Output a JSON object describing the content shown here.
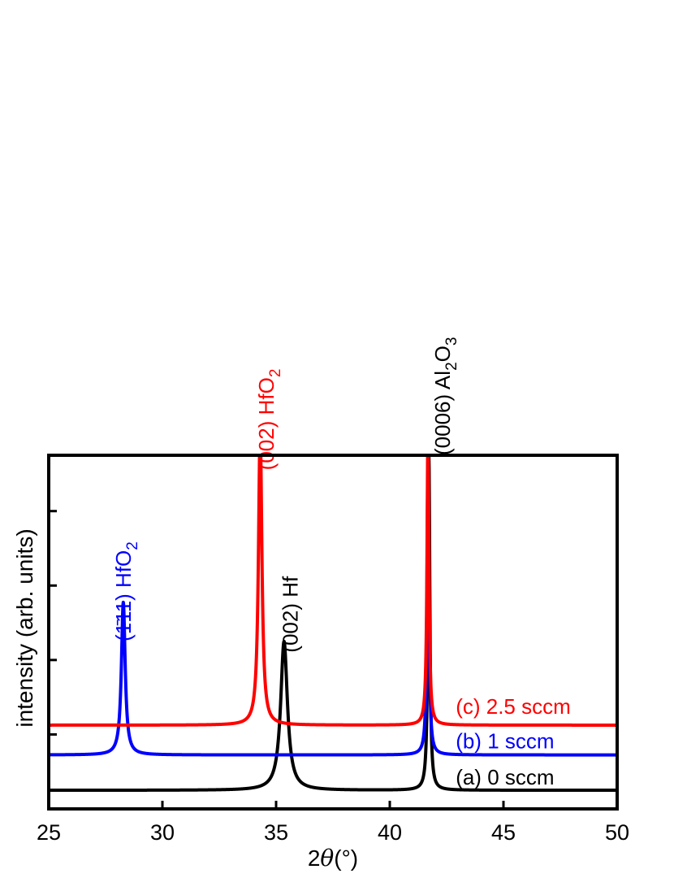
{
  "chart_data": {
    "type": "line",
    "xlabel_prefix": "2",
    "xlabel_symbol": "θ",
    "xlabel_suffix": "(°)",
    "ylabel": "intensity (arb. units)",
    "xlim": [
      25,
      50
    ],
    "xticks": [
      25,
      30,
      35,
      40,
      45,
      50
    ],
    "ylim": [
      0,
      19
    ],
    "yticks_minor_positions": [
      4,
      8,
      12,
      16
    ],
    "y_tick_labels_shown": false,
    "grid": false,
    "series": [
      {
        "name": "(a) 0 sccm",
        "color": "#000000",
        "baseline": 1.0,
        "peaks": [
          {
            "center": 35.35,
            "height": 8.0,
            "width": 0.18
          },
          {
            "center": 41.72,
            "height": 18.0,
            "width": 0.05
          }
        ]
      },
      {
        "name": "(b) 1 sccm",
        "color": "#0000ff",
        "baseline": 2.9,
        "peaks": [
          {
            "center": 28.28,
            "height": 8.2,
            "width": 0.1
          },
          {
            "center": 41.68,
            "height": 16.0,
            "width": 0.05
          }
        ]
      },
      {
        "name": "(c) 2.5 sccm",
        "color": "#ff0000",
        "baseline": 4.5,
        "peaks": [
          {
            "center": 34.3,
            "height": 16.0,
            "width": 0.09
          },
          {
            "center": 41.68,
            "height": 16.0,
            "width": 0.05
          }
        ]
      }
    ],
    "annotations": [
      {
        "text": "(1̄11) HfO",
        "sub": "2",
        "color": "#0000ff",
        "x": 28.6,
        "y": 9.0,
        "rotate": -90
      },
      {
        "text": "(002) HfO",
        "sub": "2",
        "color": "#ff0000",
        "x": 34.9,
        "y": 18.2,
        "rotate": -90
      },
      {
        "text": "(002) Hf",
        "sub": "",
        "color": "#000000",
        "x": 35.95,
        "y": 8.4,
        "rotate": -90
      },
      {
        "text": "(0006) Al",
        "sub": "2",
        "text2": "O",
        "sub2": "3",
        "color": "#000000",
        "x": 42.65,
        "y": 19.0,
        "rotate": -90
      },
      {
        "text": "(c) 2.5 sccm",
        "color": "#ff0000",
        "x": 42.9,
        "y": 5.1,
        "rotate": 0
      },
      {
        "text": "(b) 1 sccm",
        "color": "#0000ff",
        "x": 42.9,
        "y": 3.25,
        "rotate": 0
      },
      {
        "text": "(a) 0 sccm",
        "color": "#000000",
        "x": 42.9,
        "y": 1.3,
        "rotate": 0
      }
    ]
  }
}
